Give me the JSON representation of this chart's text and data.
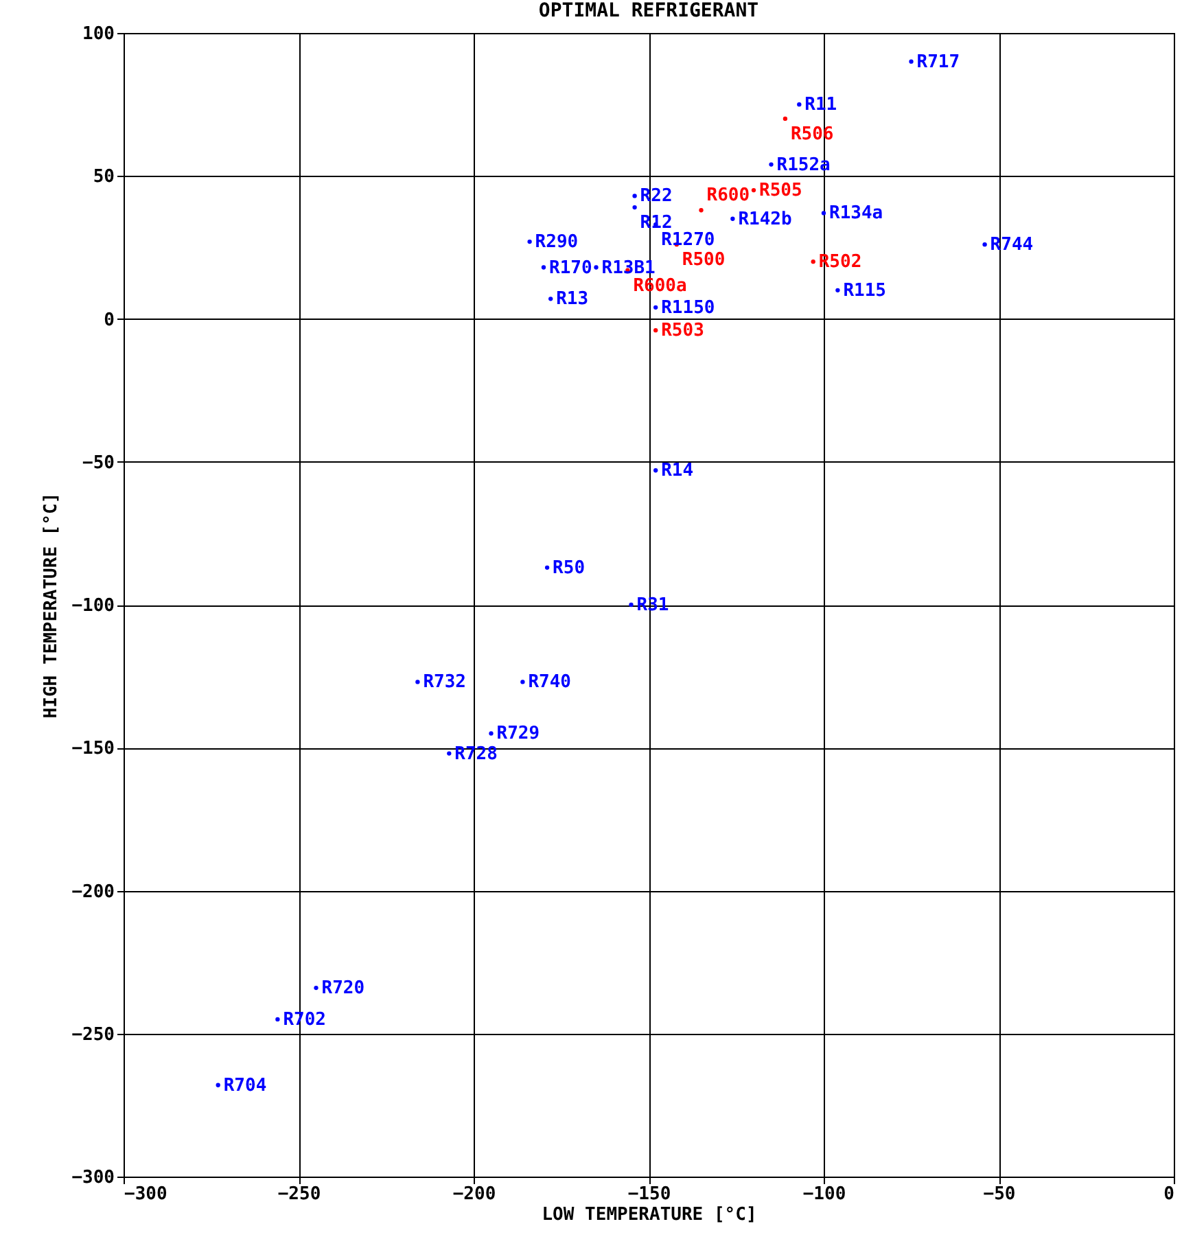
{
  "chart_data": {
    "type": "scatter",
    "title": "OPTIMAL REFRIGERANT",
    "xlabel": "LOW TEMPERATURE [°C]",
    "ylabel": "HIGH TEMPERATURE [°C]",
    "xlim": [
      -300,
      0
    ],
    "xticks": [
      -300,
      -250,
      -200,
      -150,
      -100,
      -50,
      0
    ],
    "ylim": [
      -300,
      100
    ],
    "yticks": [
      -300,
      -250,
      -200,
      -150,
      -100,
      -50,
      0,
      50,
      100
    ],
    "grid": true,
    "marker": "circle",
    "series": [
      {
        "color": "#0000ff",
        "x": [
          -75,
          -107,
          -115,
          -100,
          -54,
          -96,
          -154,
          -154,
          -148,
          -126,
          -184,
          -180,
          -165,
          -178,
          -148,
          -148,
          -179,
          -155,
          -216,
          -186,
          -195,
          -207,
          -245,
          -256,
          -273
        ],
        "values": [
          90,
          75,
          54,
          37,
          26,
          10,
          43,
          39,
          33,
          35,
          27,
          18,
          18,
          7,
          4,
          -53,
          -87,
          -100,
          -127,
          -127,
          -145,
          -152,
          -234,
          -245,
          -268
        ],
        "value_labels": [
          "R717",
          "R11",
          "R152a",
          "R134a",
          "R744",
          "R115",
          "R22",
          "R12",
          "R1270",
          "R142b",
          "R290",
          "R170",
          "R13B1",
          "R13",
          "R1150",
          "R14",
          "R50",
          "R31",
          "R732",
          "R740",
          "R729",
          "R728",
          "R720",
          "R702",
          "R704"
        ]
      },
      {
        "color": "#ff0000",
        "x": [
          -111,
          -120,
          -103,
          -135,
          -142,
          -156,
          -148
        ],
        "values": [
          70,
          45,
          20,
          38,
          26,
          17,
          -4
        ],
        "value_labels": [
          "R506",
          "R505",
          "R502",
          "R600",
          "R500",
          "R600a",
          "R503"
        ]
      }
    ]
  }
}
